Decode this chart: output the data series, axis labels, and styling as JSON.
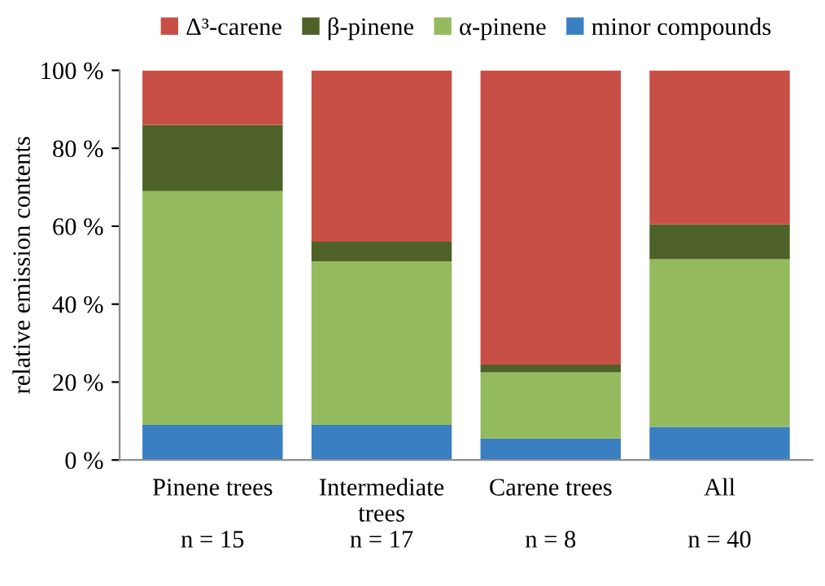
{
  "chart_data": {
    "type": "bar",
    "stacked": true,
    "ylabel": "relative emission contents",
    "categories": [
      "Pinene trees\n\nn = 15",
      "Intermediate\ntrees\nn = 17",
      "Carene trees\n\nn = 8",
      "All\n\nn = 40"
    ],
    "series": [
      {
        "name": "minor compounds",
        "color": "#3a7fc1",
        "values": [
          9,
          9,
          5.5,
          8.5
        ]
      },
      {
        "name": "α-pinene",
        "color": "#93bb5e",
        "values": [
          60,
          42,
          17,
          43
        ]
      },
      {
        "name": "β-pinene",
        "color": "#4e6128",
        "values": [
          17,
          5,
          2,
          9
        ]
      },
      {
        "name": "Δ³-carene",
        "color": "#c84f46",
        "values": [
          14,
          44,
          75.5,
          39.5
        ]
      }
    ],
    "ylim": [
      0,
      100
    ],
    "yticks": [
      {
        "value": 0,
        "label": "0 %"
      },
      {
        "value": 20,
        "label": "20 %"
      },
      {
        "value": 40,
        "label": "40 %"
      },
      {
        "value": 60,
        "label": "60 %"
      },
      {
        "value": 80,
        "label": "80 %"
      },
      {
        "value": 100,
        "label": "100 %"
      }
    ],
    "grid": false,
    "legend": "top"
  }
}
